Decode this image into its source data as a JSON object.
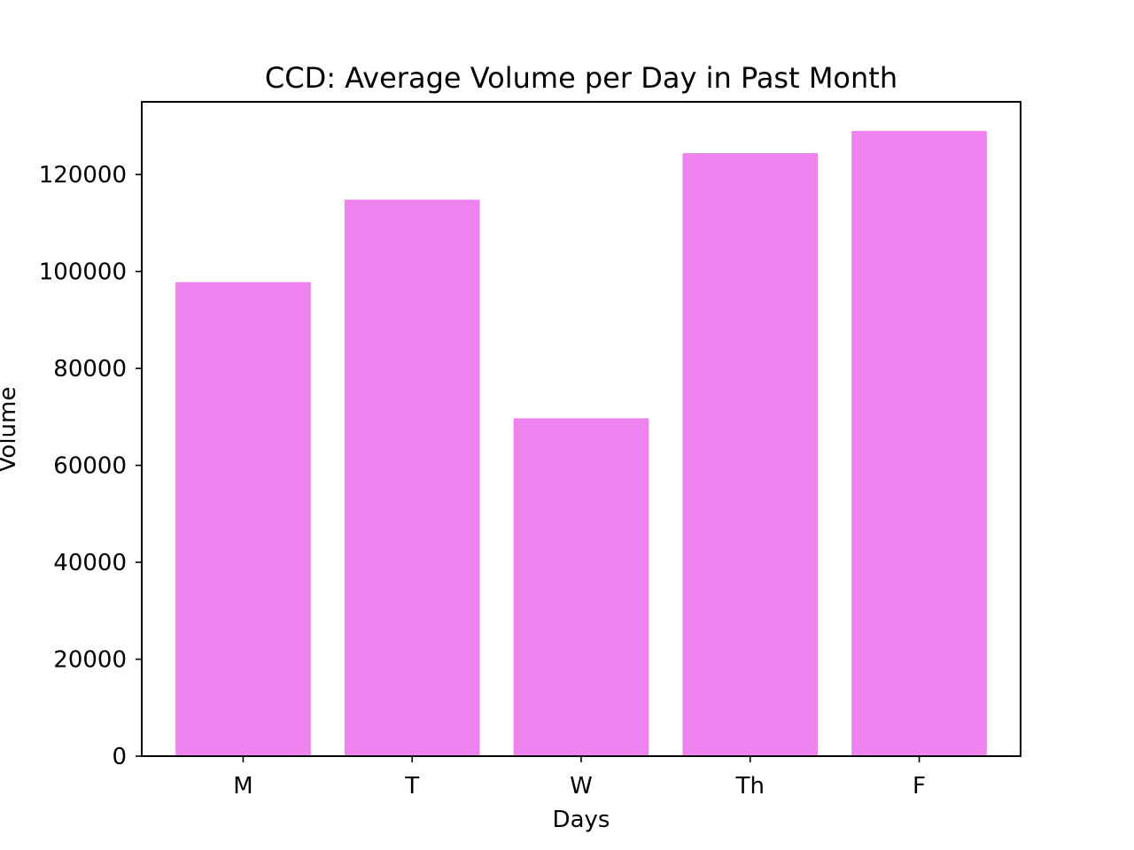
{
  "chart_data": {
    "type": "bar",
    "title": "CCD: Average Volume per Day in Past Month",
    "xlabel": "Days",
    "ylabel": "Volume",
    "categories": [
      "M",
      "T",
      "W",
      "Th",
      "F"
    ],
    "values": [
      97800,
      114800,
      69700,
      124400,
      129000
    ],
    "ylim": [
      0,
      135000
    ],
    "yticks": [
      0,
      20000,
      40000,
      60000,
      80000,
      100000,
      120000
    ],
    "ytick_labels": [
      "0",
      "20000",
      "40000",
      "60000",
      "80000",
      "100000",
      "120000"
    ],
    "bar_color": "#ee82ee",
    "grid": false,
    "legend": "none"
  }
}
